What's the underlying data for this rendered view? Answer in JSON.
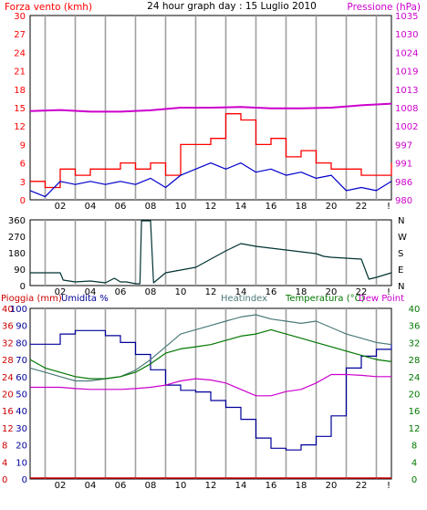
{
  "header": {
    "left_label": "Forza vento (kmh)",
    "title": "24 hour graph day : 15 Luglio 2010",
    "right_label": "Pressione (hPa)"
  },
  "colors": {
    "wind": "#ff0000",
    "gust_dark": "#0000cc",
    "pressure": "#cc00cc",
    "direction": "#003333",
    "heatindex": "#4d7a7a",
    "temperature": "#007700",
    "humidity": "#000099",
    "dewpoint": "#cc00cc",
    "rain": "#cc0000",
    "hour_grid": "#a0a0a0"
  },
  "x_hours": [
    "02",
    "04",
    "06",
    "08",
    "10",
    "12",
    "14",
    "16",
    "18",
    "20",
    "22",
    "!"
  ],
  "chart_data": [
    {
      "id": "wind-pressure",
      "type": "line",
      "left_axis": {
        "label": "Forza vento (kmh)",
        "ticks": [
          "0",
          "3",
          "6",
          "9",
          "12",
          "15",
          "18",
          "21",
          "24",
          "27",
          "30"
        ],
        "range": [
          0,
          30
        ]
      },
      "right_axis": {
        "label": "Pressione (hPa)",
        "ticks": [
          "980",
          "986",
          "991",
          "997",
          "1002",
          "1008",
          "1013",
          "1019",
          "1024",
          "1030",
          "1035"
        ],
        "range": [
          980,
          1035
        ]
      },
      "x_range_hours": [
        0,
        24
      ],
      "series": [
        {
          "key": "pressure",
          "axis": "right",
          "x": [
            0,
            2,
            4,
            6,
            8,
            10,
            12,
            14,
            16,
            18,
            20,
            22,
            24
          ],
          "y": [
            1006.5,
            1006.8,
            1006.3,
            1006.3,
            1006.7,
            1007.5,
            1007.5,
            1007.7,
            1007.3,
            1007.3,
            1007.5,
            1008.2,
            1008.7
          ]
        },
        {
          "key": "wind",
          "axis": "left",
          "x": [
            0,
            1,
            2,
            3,
            4,
            5,
            6,
            7,
            8,
            9,
            10,
            11,
            12,
            13,
            14,
            15,
            16,
            17,
            18,
            19,
            20,
            21,
            22,
            23,
            24
          ],
          "y": [
            3,
            2,
            5,
            4,
            5,
            5,
            6,
            5,
            6,
            4,
            9,
            9,
            10,
            14,
            13,
            9,
            10,
            7,
            8,
            6,
            5,
            5,
            4,
            4,
            6
          ]
        },
        {
          "key": "gust_dark",
          "axis": "left",
          "x": [
            0,
            1,
            2,
            3,
            4,
            5,
            6,
            7,
            8,
            9,
            10,
            11,
            12,
            13,
            14,
            15,
            16,
            17,
            18,
            19,
            20,
            21,
            22,
            23,
            24
          ],
          "y": [
            1.5,
            0.5,
            3,
            2.5,
            3,
            2.5,
            3,
            2.5,
            3.5,
            2,
            4,
            5,
            6,
            5,
            6,
            4.5,
            5,
            4,
            4.5,
            3.5,
            4,
            1.5,
            2,
            1.5,
            3
          ]
        }
      ]
    },
    {
      "id": "wind-direction",
      "type": "line",
      "left_axis": {
        "ticks": [
          "0",
          "90",
          "180",
          "270",
          "360"
        ],
        "range": [
          0,
          360
        ]
      },
      "right_axis": {
        "ticks": [
          "N",
          "E",
          "S",
          "W",
          "N"
        ]
      },
      "x_range_hours": [
        0,
        24
      ],
      "series": [
        {
          "key": "direction",
          "x": [
            0,
            1,
            2,
            2.2,
            3,
            4,
            5,
            5.6,
            6,
            6.4,
            7,
            7.3,
            7.4,
            8,
            8.2,
            9,
            10,
            11,
            12,
            13,
            14,
            15,
            16,
            17,
            18,
            19,
            19.5,
            20,
            21,
            22,
            22.5,
            23,
            24
          ],
          "y": [
            70,
            70,
            70,
            30,
            20,
            25,
            15,
            40,
            20,
            20,
            10,
            10,
            355,
            355,
            15,
            70,
            85,
            100,
            145,
            190,
            230,
            215,
            205,
            195,
            185,
            175,
            160,
            155,
            150,
            145,
            35,
            45,
            70
          ]
        }
      ]
    },
    {
      "id": "temp-humidity",
      "type": "line",
      "legend": [
        "Pioggia (mm)",
        "Umidita %",
        "Heatindex",
        "Temperatura (°C)",
        "Dew Point"
      ],
      "rain_axis": {
        "label": "Pioggia (mm)",
        "ticks": [
          "0",
          "4",
          "8",
          "12",
          "16",
          "20",
          "24",
          "28",
          "32",
          "36",
          "40"
        ],
        "range": [
          0,
          40
        ]
      },
      "humidity_axis": {
        "label": "Umidita %",
        "ticks": [
          "0",
          "10",
          "20",
          "30",
          "40",
          "50",
          "60",
          "70",
          "80",
          "90",
          "100"
        ],
        "range": [
          0,
          100
        ]
      },
      "temp_axis": {
        "label": "Temperatura (°C)",
        "ticks": [
          "0",
          "4",
          "8",
          "12",
          "16",
          "20",
          "24",
          "28",
          "32",
          "36",
          "40"
        ],
        "range": [
          0,
          40
        ]
      },
      "x_range_hours": [
        0,
        24
      ],
      "series": [
        {
          "key": "humidity",
          "name": "Umidita %",
          "x": [
            0,
            2,
            3,
            4,
            5,
            6,
            7,
            8,
            9,
            10,
            11,
            12,
            13,
            14,
            15,
            16,
            17,
            18,
            19,
            20,
            21,
            22,
            23,
            24
          ],
          "y": [
            79,
            85,
            87,
            87,
            84,
            80,
            73,
            64,
            55,
            52,
            51,
            46,
            42,
            35,
            24,
            18,
            17,
            20,
            25,
            37,
            65,
            72,
            76,
            79
          ]
        },
        {
          "key": "heatindex",
          "name": "Heatindex",
          "x": [
            0,
            1,
            2,
            3,
            4,
            5,
            6,
            7,
            8,
            9,
            10,
            11,
            12,
            13,
            14,
            15,
            16,
            17,
            18,
            19,
            20,
            21,
            22,
            23,
            24
          ],
          "y": [
            26,
            25,
            24,
            23,
            23,
            23.5,
            24,
            25.5,
            28,
            31,
            34,
            35,
            36,
            37,
            38,
            38.5,
            37.5,
            37,
            36.5,
            37,
            35.5,
            34,
            33,
            32,
            31.5
          ]
        },
        {
          "key": "temperature",
          "name": "Temperatura (°C)",
          "x": [
            0,
            1,
            2,
            3,
            4,
            5,
            6,
            7,
            8,
            9,
            10,
            11,
            12,
            13,
            14,
            15,
            16,
            17,
            18,
            19,
            20,
            21,
            22,
            23,
            24
          ],
          "y": [
            28,
            26,
            25,
            24,
            23.5,
            23.5,
            24,
            25,
            27,
            29.5,
            30.5,
            31,
            31.5,
            32.5,
            33.5,
            34,
            35,
            34,
            33,
            32,
            31,
            30,
            29,
            28,
            27.5
          ]
        },
        {
          "key": "dewpoint",
          "name": "Dew Point",
          "x": [
            0,
            1,
            2,
            3,
            4,
            5,
            6,
            7,
            8,
            9,
            10,
            11,
            12,
            13,
            14,
            15,
            16,
            17,
            18,
            19,
            20,
            21,
            22,
            23,
            24
          ],
          "y": [
            21.5,
            21.5,
            21.5,
            21.2,
            21,
            21,
            21,
            21.2,
            21.5,
            22,
            23,
            23.5,
            23.2,
            22.5,
            21,
            19.5,
            19.5,
            20.5,
            21,
            22.5,
            24.5,
            24.5,
            24.3,
            24,
            24
          ]
        },
        {
          "key": "rain",
          "name": "Pioggia (mm)",
          "x": [
            0,
            24
          ],
          "y": [
            0,
            0
          ]
        }
      ]
    }
  ]
}
